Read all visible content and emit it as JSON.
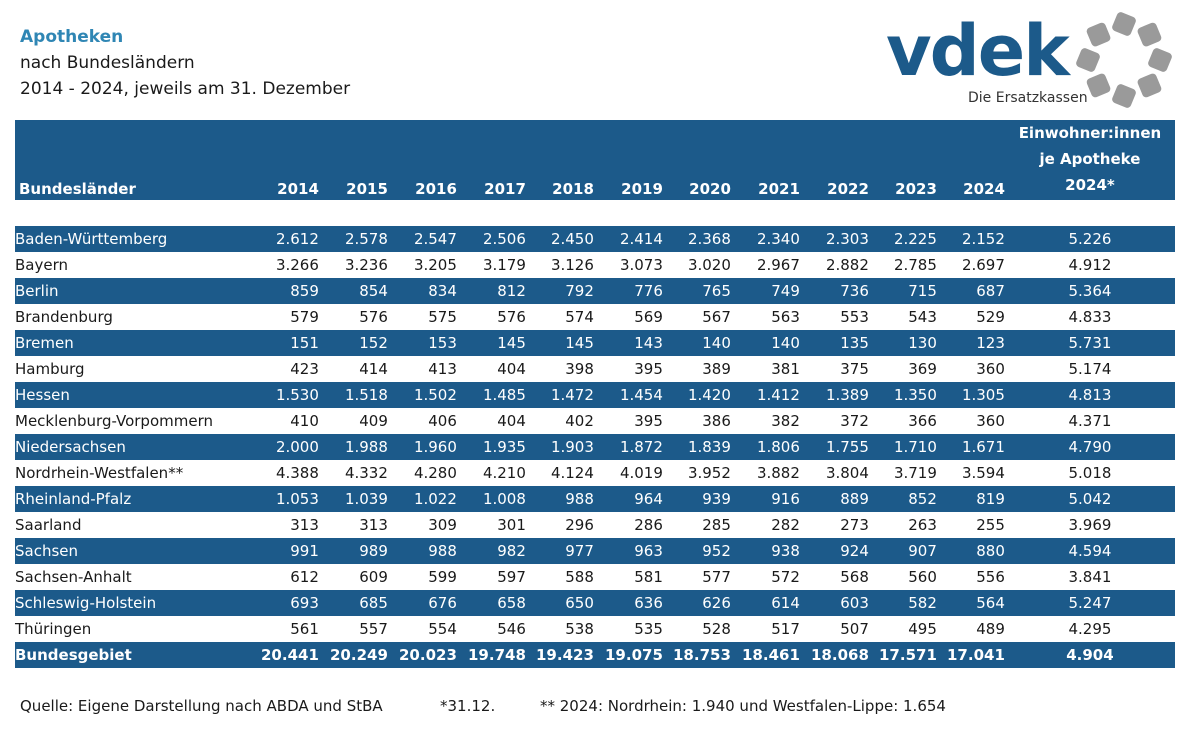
{
  "title": {
    "line1": "Apotheken",
    "line2": "nach Bundesländern",
    "line3": "2014 - 2024, jeweils am 31. Dezember"
  },
  "logo": {
    "text": "vdek",
    "subtitle": "Die Ersatzkassen",
    "color": "#1c5a8a",
    "ring_color": "#9a9a9a"
  },
  "table": {
    "header": {
      "name": "Bundesländer",
      "years": [
        "2014",
        "2015",
        "2016",
        "2017",
        "2018",
        "2019",
        "2020",
        "2021",
        "2022",
        "2023",
        "2024"
      ],
      "ew_line1": "Einwohner:innen",
      "ew_line2": "je Apotheke",
      "ew_line3": "2024*"
    },
    "rows": [
      {
        "name": "Baden-Württemberg",
        "values": [
          "2.612",
          "2.578",
          "2.547",
          "2.506",
          "2.450",
          "2.414",
          "2.368",
          "2.340",
          "2.303",
          "2.225",
          "2.152"
        ],
        "ew": "5.226"
      },
      {
        "name": "Bayern",
        "values": [
          "3.266",
          "3.236",
          "3.205",
          "3.179",
          "3.126",
          "3.073",
          "3.020",
          "2.967",
          "2.882",
          "2.785",
          "2.697"
        ],
        "ew": "4.912"
      },
      {
        "name": "Berlin",
        "values": [
          "859",
          "854",
          "834",
          "812",
          "792",
          "776",
          "765",
          "749",
          "736",
          "715",
          "687"
        ],
        "ew": "5.364"
      },
      {
        "name": "Brandenburg",
        "values": [
          "579",
          "576",
          "575",
          "576",
          "574",
          "569",
          "567",
          "563",
          "553",
          "543",
          "529"
        ],
        "ew": "4.833"
      },
      {
        "name": "Bremen",
        "values": [
          "151",
          "152",
          "153",
          "145",
          "145",
          "143",
          "140",
          "140",
          "135",
          "130",
          "123"
        ],
        "ew": "5.731"
      },
      {
        "name": "Hamburg",
        "values": [
          "423",
          "414",
          "413",
          "404",
          "398",
          "395",
          "389",
          "381",
          "375",
          "369",
          "360"
        ],
        "ew": "5.174"
      },
      {
        "name": "Hessen",
        "values": [
          "1.530",
          "1.518",
          "1.502",
          "1.485",
          "1.472",
          "1.454",
          "1.420",
          "1.412",
          "1.389",
          "1.350",
          "1.305"
        ],
        "ew": "4.813"
      },
      {
        "name": "Mecklenburg-Vorpommern",
        "values": [
          "410",
          "409",
          "406",
          "404",
          "402",
          "395",
          "386",
          "382",
          "372",
          "366",
          "360"
        ],
        "ew": "4.371"
      },
      {
        "name": "Niedersachsen",
        "values": [
          "2.000",
          "1.988",
          "1.960",
          "1.935",
          "1.903",
          "1.872",
          "1.839",
          "1.806",
          "1.755",
          "1.710",
          "1.671"
        ],
        "ew": "4.790"
      },
      {
        "name": "Nordrhein-Westfalen**",
        "values": [
          "4.388",
          "4.332",
          "4.280",
          "4.210",
          "4.124",
          "4.019",
          "3.952",
          "3.882",
          "3.804",
          "3.719",
          "3.594"
        ],
        "ew": "5.018"
      },
      {
        "name": "Rheinland-Pfalz",
        "values": [
          "1.053",
          "1.039",
          "1.022",
          "1.008",
          "988",
          "964",
          "939",
          "916",
          "889",
          "852",
          "819"
        ],
        "ew": "5.042"
      },
      {
        "name": "Saarland",
        "values": [
          "313",
          "313",
          "309",
          "301",
          "296",
          "286",
          "285",
          "282",
          "273",
          "263",
          "255"
        ],
        "ew": "3.969"
      },
      {
        "name": "Sachsen",
        "values": [
          "991",
          "989",
          "988",
          "982",
          "977",
          "963",
          "952",
          "938",
          "924",
          "907",
          "880"
        ],
        "ew": "4.594"
      },
      {
        "name": "Sachsen-Anhalt",
        "values": [
          "612",
          "609",
          "599",
          "597",
          "588",
          "581",
          "577",
          "572",
          "568",
          "560",
          "556"
        ],
        "ew": "3.841"
      },
      {
        "name": "Schleswig-Holstein",
        "values": [
          "693",
          "685",
          "676",
          "658",
          "650",
          "636",
          "626",
          "614",
          "603",
          "582",
          "564"
        ],
        "ew": "5.247"
      },
      {
        "name": "Thüringen",
        "values": [
          "561",
          "557",
          "554",
          "546",
          "538",
          "535",
          "528",
          "517",
          "507",
          "495",
          "489"
        ],
        "ew": "4.295"
      }
    ],
    "total": {
      "name": "Bundesgebiet",
      "values": [
        "20.441",
        "20.249",
        "20.023",
        "19.748",
        "19.423",
        "19.075",
        "18.753",
        "18.461",
        "18.068",
        "17.571",
        "17.041"
      ],
      "ew": "4.904"
    }
  },
  "footnotes": {
    "source": "Quelle: Eigene Darstellung nach ABDA und StBA",
    "star": "*31.12.",
    "double_star": "** 2024: Nordrhein: 1.940 und Westfalen-Lippe: 1.654"
  }
}
